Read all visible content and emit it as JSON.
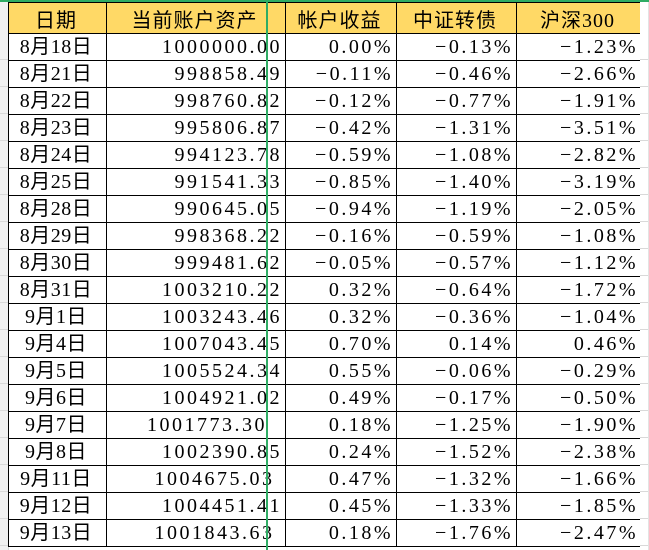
{
  "colors": {
    "header_bg": "#FFD966",
    "cell_border": "#000000",
    "green_accent": "#2FAC64",
    "gutter_bg": "#F1F1F1",
    "gridline": "#D9D9D9"
  },
  "icons": {},
  "table": {
    "headers": [
      "日期",
      "当前账户资产",
      "帐户收益",
      "中证转债",
      "沪深300"
    ],
    "rows": [
      {
        "date": "8月18日",
        "assets": "1000000.00",
        "account_return": "0.00%",
        "csi_convertible": "−0.13%",
        "hs300": "−1.23%"
      },
      {
        "date": "8月21日",
        "assets": "998858.49",
        "account_return": "−0.11%",
        "csi_convertible": "−0.46%",
        "hs300": "−2.66%"
      },
      {
        "date": "8月22日",
        "assets": "998760.82",
        "account_return": "−0.12%",
        "csi_convertible": "−0.77%",
        "hs300": "−1.91%"
      },
      {
        "date": "8月23日",
        "assets": "995806.87",
        "account_return": "−0.42%",
        "csi_convertible": "−1.31%",
        "hs300": "−3.51%"
      },
      {
        "date": "8月24日",
        "assets": "994123.78",
        "account_return": "−0.59%",
        "csi_convertible": "−1.08%",
        "hs300": "−2.82%"
      },
      {
        "date": "8月25日",
        "assets": "991541.33",
        "account_return": "−0.85%",
        "csi_convertible": "−1.40%",
        "hs300": "−3.19%"
      },
      {
        "date": "8月28日",
        "assets": "990645.05",
        "account_return": "−0.94%",
        "csi_convertible": "−1.19%",
        "hs300": "−2.05%"
      },
      {
        "date": "8月29日",
        "assets": "998368.22",
        "account_return": "−0.16%",
        "csi_convertible": "−0.59%",
        "hs300": "−1.08%"
      },
      {
        "date": "8月30日",
        "assets": "999481.62",
        "account_return": "−0.05%",
        "csi_convertible": "−0.57%",
        "hs300": "−1.12%"
      },
      {
        "date": "8月31日",
        "assets": "1003210.22",
        "account_return": "0.32%",
        "csi_convertible": "−0.64%",
        "hs300": "−1.72%"
      },
      {
        "date": "9月1日",
        "assets": "1003243.46",
        "account_return": "0.32%",
        "csi_convertible": "−0.36%",
        "hs300": "−1.04%"
      },
      {
        "date": "9月4日",
        "assets": "1007043.45",
        "account_return": "0.70%",
        "csi_convertible": "0.14%",
        "hs300": "0.46%"
      },
      {
        "date": "9月5日",
        "assets": "1005524.34",
        "account_return": "0.55%",
        "csi_convertible": "−0.06%",
        "hs300": "−0.29%"
      },
      {
        "date": "9月6日",
        "assets": "1004921.02",
        "account_return": "0.49%",
        "csi_convertible": "−0.17%",
        "hs300": "−0.50%"
      },
      {
        "date": "9月7日",
        "assets": "1001773.30  ",
        "account_return": "0.18%",
        "csi_convertible": "−1.25%",
        "hs300": "−1.90%"
      },
      {
        "date": "9月8日",
        "assets": "1002390.85",
        "account_return": "0.24%",
        "csi_convertible": "−1.52%",
        "hs300": "−2.38%"
      },
      {
        "date": "9月11日",
        "assets": "1004675.03 ",
        "account_return": "0.47%",
        "csi_convertible": "−1.32%",
        "hs300": "−1.66%"
      },
      {
        "date": "9月12日",
        "assets": "1004451.41",
        "account_return": "0.45%",
        "csi_convertible": "−1.33%",
        "hs300": "−1.85%"
      },
      {
        "date": "9月13日",
        "assets": "1001843.63 ",
        "account_return": "0.18%",
        "csi_convertible": "−1.76%",
        "hs300": "−2.47%"
      }
    ]
  }
}
